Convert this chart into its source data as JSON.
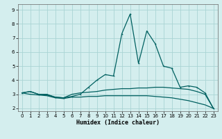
{
  "xlabel": "Humidex (Indice chaleur)",
  "ylabel": "",
  "xlim": [
    -0.5,
    23.5
  ],
  "ylim": [
    1.8,
    9.4
  ],
  "bg_color": "#d4eeee",
  "line_color": "#006060",
  "grid_color": "#aad4d4",
  "x_ticks": [
    0,
    1,
    2,
    3,
    4,
    5,
    6,
    7,
    8,
    9,
    10,
    11,
    12,
    13,
    14,
    15,
    16,
    17,
    18,
    19,
    20,
    21,
    22,
    23
  ],
  "y_ticks": [
    2,
    3,
    4,
    5,
    6,
    7,
    8,
    9
  ],
  "line1": [
    3.1,
    3.2,
    3.0,
    3.0,
    2.8,
    2.75,
    2.85,
    3.0,
    3.5,
    4.0,
    4.4,
    4.3,
    7.3,
    8.7,
    5.2,
    7.5,
    6.6,
    5.0,
    4.85,
    3.5,
    3.6,
    3.5,
    3.1,
    2.0
  ],
  "line2": [
    3.1,
    3.2,
    3.0,
    2.95,
    2.8,
    2.75,
    3.0,
    3.1,
    3.15,
    3.2,
    3.3,
    3.35,
    3.4,
    3.4,
    3.45,
    3.45,
    3.5,
    3.5,
    3.45,
    3.4,
    3.35,
    3.2,
    3.0,
    2.0
  ],
  "line3": [
    3.1,
    3.0,
    2.95,
    2.9,
    2.75,
    2.7,
    2.8,
    2.8,
    2.85,
    2.85,
    2.9,
    2.9,
    2.9,
    2.9,
    2.9,
    2.9,
    2.85,
    2.8,
    2.75,
    2.65,
    2.55,
    2.4,
    2.25,
    2.0
  ]
}
